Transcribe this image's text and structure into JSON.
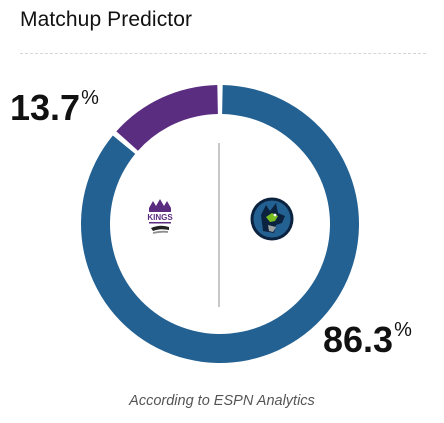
{
  "widget": {
    "title": "Matchup Predictor",
    "footnote": "According to ESPN Analytics"
  },
  "teams": [
    {
      "id": "away",
      "logo_icon": "sacramento-kings-logo",
      "logo_text": "KINGS",
      "color": "#5a2d81",
      "win_probability": 13.7,
      "percent_number": "13.7",
      "percent_symbol": "%"
    },
    {
      "id": "home",
      "logo_icon": "minnesota-timberwolves-logo",
      "color": "#236192",
      "win_probability": 86.3,
      "percent_number": "86.3",
      "percent_symbol": "%"
    }
  ],
  "colors": {
    "divider": "#b5b5b5",
    "text": "#111111",
    "muted": "#555555"
  }
}
